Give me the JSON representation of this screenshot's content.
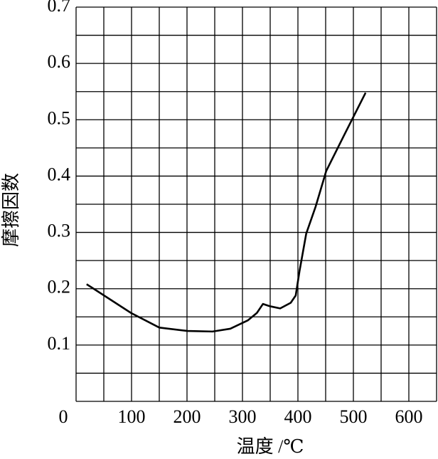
{
  "chart_data": {
    "type": "line",
    "x_label": "温度 /℃",
    "y_label": "摩擦因数",
    "x": [
      19,
      99,
      150,
      201,
      246,
      278,
      310,
      326,
      337,
      349,
      368,
      387,
      396,
      403,
      415,
      432,
      451,
      483,
      522
    ],
    "series": [
      {
        "color": "#000000",
        "values": [
          0.208,
          0.157,
          0.131,
          0.125,
          0.124,
          0.129,
          0.144,
          0.157,
          0.173,
          0.169,
          0.165,
          0.175,
          0.188,
          0.232,
          0.298,
          0.346,
          0.409,
          0.472,
          0.548
        ]
      }
    ],
    "xlim": [
      0,
      650
    ],
    "ylim": [
      0,
      0.7
    ],
    "xticks": [
      0,
      100,
      200,
      300,
      400,
      500,
      600
    ],
    "yticks": [
      0.1,
      0.2,
      0.3,
      0.4,
      0.5,
      0.6,
      0.7
    ],
    "xgrid": [
      0,
      50,
      100,
      150,
      200,
      250,
      300,
      350,
      400,
      450,
      500,
      550,
      600,
      650
    ],
    "ygrid": [
      0,
      0.05,
      0.1,
      0.15,
      0.2,
      0.25,
      0.3,
      0.35,
      0.4,
      0.45,
      0.5,
      0.55,
      0.6,
      0.65,
      0.7
    ],
    "grid": true
  }
}
